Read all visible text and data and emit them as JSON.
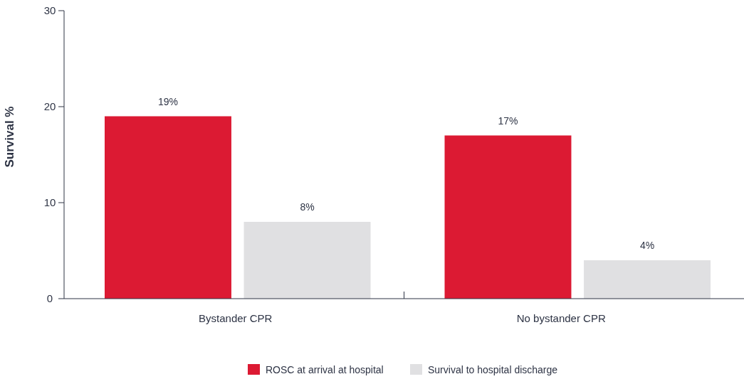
{
  "chart_data": {
    "type": "bar",
    "ylabel": "Survival %",
    "categories": [
      "Bystander CPR",
      "No bystander CPR"
    ],
    "series": [
      {
        "name": "ROSC at arrival at hospital",
        "color": "#dc1a33",
        "values": [
          19,
          17
        ],
        "value_labels": [
          "19%",
          "17%"
        ]
      },
      {
        "name": "Survival to hospital discharge",
        "color": "#e0e0e2",
        "values": [
          8,
          4
        ],
        "value_labels": [
          "8%",
          "4%"
        ]
      }
    ],
    "ylim": [
      0,
      30
    ],
    "yticks": [
      0,
      10,
      20,
      30
    ],
    "grid": false,
    "legend": "bottom"
  }
}
